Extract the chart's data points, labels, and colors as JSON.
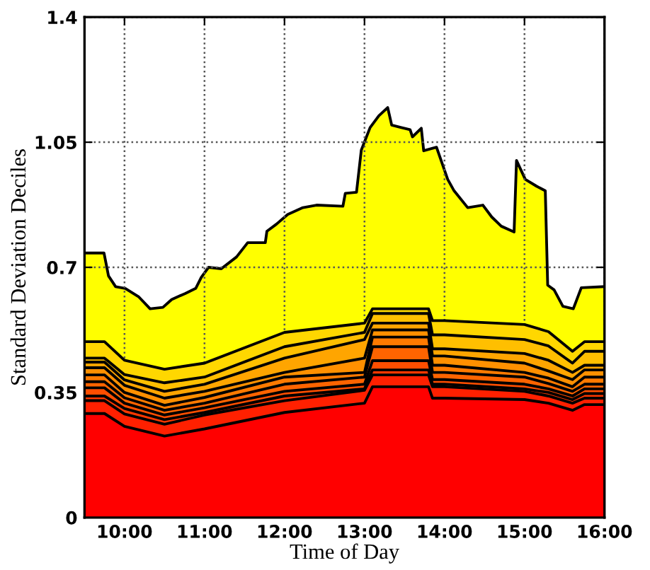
{
  "chart_data": {
    "type": "area",
    "xlabel": "Time of Day",
    "ylabel": "Standard Deviation Deciles",
    "x": [
      9.5,
      9.75,
      10.0,
      10.5,
      11.0,
      12.0,
      13.0,
      13.1,
      13.8,
      13.85,
      14.0,
      15.0,
      15.3,
      15.6,
      15.75,
      16.0
    ],
    "xlim": [
      9.5,
      16
    ],
    "xticks": [
      {
        "value": 10,
        "label": "10:00"
      },
      {
        "value": 11,
        "label": "11:00"
      },
      {
        "value": 12,
        "label": "12:00"
      },
      {
        "value": 13,
        "label": "13:00"
      },
      {
        "value": 14,
        "label": "14:00"
      },
      {
        "value": 15,
        "label": "15:00"
      },
      {
        "value": 16,
        "label": "16:00"
      }
    ],
    "ylim": [
      0,
      1.4
    ],
    "yticks": [
      0,
      0.35,
      0.7,
      1.05,
      1.4
    ],
    "grid": true,
    "line_style": "solid",
    "series": [
      {
        "color": "#ffff00",
        "x": [
          9.5,
          9.744,
          9.8,
          9.889,
          10.01,
          10.18,
          10.32,
          10.48,
          10.59,
          10.76,
          10.89,
          10.96,
          11.05,
          11.21,
          11.4,
          11.54,
          11.76,
          11.78,
          11.9,
          12.04,
          12.23,
          12.4,
          12.73,
          12.76,
          12.9,
          12.96,
          13.07,
          13.18,
          13.29,
          13.34,
          13.46,
          13.57,
          13.6,
          13.71,
          13.74,
          13.9,
          14.04,
          14.12,
          14.29,
          14.48,
          14.59,
          14.71,
          14.87,
          14.9,
          15.01,
          15.15,
          15.26,
          15.29,
          15.37,
          15.48,
          15.61,
          15.71,
          16.0
        ],
        "values": [
          0.74,
          0.74,
          0.676,
          0.646,
          0.641,
          0.617,
          0.584,
          0.588,
          0.61,
          0.627,
          0.641,
          0.672,
          0.7,
          0.696,
          0.729,
          0.769,
          0.769,
          0.801,
          0.821,
          0.848,
          0.867,
          0.874,
          0.871,
          0.907,
          0.91,
          1.028,
          1.091,
          1.124,
          1.147,
          1.098,
          1.091,
          1.085,
          1.065,
          1.089,
          1.026,
          1.036,
          0.946,
          0.914,
          0.867,
          0.874,
          0.841,
          0.815,
          0.799,
          0.999,
          0.946,
          0.927,
          0.914,
          0.65,
          0.637,
          0.591,
          0.584,
          0.643,
          0.646
        ]
      },
      {
        "color": "#ffd700",
        "values": [
          0.492,
          0.492,
          0.44,
          0.415,
          0.432,
          0.518,
          0.544,
          0.584,
          0.584,
          0.551,
          0.551,
          0.54,
          0.52,
          0.465,
          0.492,
          0.492
        ]
      },
      {
        "color": "#ffbf00",
        "values": [
          0.446,
          0.446,
          0.4,
          0.377,
          0.393,
          0.478,
          0.518,
          0.571,
          0.571,
          0.511,
          0.511,
          0.498,
          0.48,
          0.432,
          0.465,
          0.465
        ]
      },
      {
        "color": "#ffa500",
        "values": [
          0.435,
          0.435,
          0.385,
          0.353,
          0.373,
          0.446,
          0.498,
          0.544,
          0.544,
          0.472,
          0.472,
          0.459,
          0.44,
          0.406,
          0.426,
          0.426
        ]
      },
      {
        "color": "#ff9000",
        "values": [
          0.419,
          0.419,
          0.37,
          0.334,
          0.353,
          0.406,
          0.446,
          0.525,
          0.525,
          0.452,
          0.452,
          0.432,
          0.41,
          0.386,
          0.413,
          0.413
        ]
      },
      {
        "color": "#ff7a00",
        "values": [
          0.399,
          0.399,
          0.35,
          0.314,
          0.336,
          0.393,
          0.406,
          0.505,
          0.505,
          0.426,
          0.426,
          0.406,
          0.39,
          0.366,
          0.393,
          0.393
        ]
      },
      {
        "color": "#ff6400",
        "values": [
          0.38,
          0.38,
          0.335,
          0.3,
          0.32,
          0.373,
          0.393,
          0.478,
          0.478,
          0.406,
          0.406,
          0.393,
          0.375,
          0.353,
          0.373,
          0.373
        ]
      },
      {
        "color": "#ff4e00",
        "values": [
          0.363,
          0.363,
          0.32,
          0.287,
          0.307,
          0.353,
          0.373,
          0.439,
          0.439,
          0.386,
          0.386,
          0.373,
          0.36,
          0.34,
          0.36,
          0.36
        ]
      },
      {
        "color": "#ff3800",
        "values": [
          0.34,
          0.34,
          0.305,
          0.274,
          0.294,
          0.34,
          0.36,
          0.413,
          0.413,
          0.373,
          0.373,
          0.36,
          0.35,
          0.33,
          0.347,
          0.347
        ]
      },
      {
        "color": "#ff2000",
        "values": [
          0.327,
          0.327,
          0.29,
          0.261,
          0.287,
          0.327,
          0.356,
          0.399,
          0.399,
          0.366,
          0.366,
          0.353,
          0.34,
          0.32,
          0.334,
          0.334
        ]
      },
      {
        "color": "#ff0000",
        "values": [
          0.291,
          0.291,
          0.255,
          0.228,
          0.248,
          0.294,
          0.32,
          0.366,
          0.366,
          0.334,
          0.334,
          0.33,
          0.32,
          0.3,
          0.316,
          0.316
        ]
      }
    ]
  }
}
